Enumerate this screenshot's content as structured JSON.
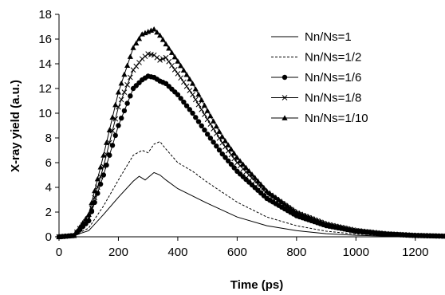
{
  "chart_data": {
    "type": "line",
    "title": "",
    "xlabel": "Time (ps)",
    "ylabel": "X-ray yield (a.u.)",
    "xlim": [
      0,
      1300
    ],
    "ylim": [
      0,
      18
    ],
    "xticks": [
      "0",
      "200",
      "400",
      "600",
      "800",
      "1000",
      "1200"
    ],
    "yticks": [
      "0",
      "2",
      "4",
      "6",
      "8",
      "10",
      "12",
      "14",
      "16",
      "18"
    ],
    "grid": false,
    "legend_position": "top-right",
    "series": [
      {
        "name": "Nn/Ns=1",
        "marker": "none",
        "dash": "solid",
        "color": "#000000",
        "x": [
          0,
          50,
          100,
          150,
          200,
          250,
          270,
          290,
          320,
          340,
          360,
          400,
          450,
          500,
          600,
          700,
          800,
          900,
          1000,
          1100,
          1200,
          1300
        ],
        "y": [
          0,
          0.1,
          0.5,
          1.8,
          3.2,
          4.5,
          4.9,
          4.6,
          5.2,
          5.0,
          4.6,
          3.9,
          3.3,
          2.7,
          1.6,
          0.9,
          0.5,
          0.25,
          0.12,
          0.06,
          0.03,
          0.01
        ]
      },
      {
        "name": "Nn/Ns=1/2",
        "marker": "none",
        "dash": "dashed",
        "color": "#000000",
        "x": [
          0,
          50,
          100,
          150,
          200,
          250,
          280,
          300,
          320,
          340,
          360,
          400,
          450,
          500,
          600,
          700,
          800,
          900,
          1000,
          1100,
          1200,
          1300
        ],
        "y": [
          0,
          0.1,
          0.7,
          2.5,
          4.6,
          6.6,
          7.0,
          6.8,
          7.5,
          7.7,
          7.1,
          6.0,
          5.3,
          4.4,
          2.8,
          1.6,
          0.9,
          0.45,
          0.22,
          0.1,
          0.05,
          0.02
        ]
      },
      {
        "name": "Nn/Ns=1/6",
        "marker": "circle",
        "dash": "solid",
        "color": "#000000",
        "x": [
          0,
          50,
          100,
          150,
          200,
          250,
          280,
          300,
          320,
          340,
          360,
          400,
          450,
          500,
          550,
          600,
          700,
          800,
          900,
          1000,
          1100,
          1200,
          1300
        ],
        "y": [
          0,
          0.1,
          1.3,
          5.0,
          9.0,
          12.0,
          12.7,
          13.0,
          12.9,
          12.6,
          12.4,
          11.5,
          10.0,
          8.3,
          6.7,
          5.3,
          3.1,
          1.7,
          0.9,
          0.45,
          0.22,
          0.1,
          0.05
        ]
      },
      {
        "name": "Nn/Ns=1/8",
        "marker": "x",
        "dash": "solid",
        "color": "#000000",
        "x": [
          0,
          50,
          100,
          150,
          200,
          250,
          280,
          300,
          320,
          340,
          360,
          400,
          450,
          500,
          550,
          600,
          700,
          800,
          900,
          1000,
          1100,
          1200,
          1300
        ],
        "y": [
          0,
          0.1,
          1.5,
          5.7,
          10.5,
          13.5,
          14.4,
          14.8,
          14.7,
          14.3,
          14.5,
          13.2,
          11.5,
          9.5,
          7.6,
          6.0,
          3.5,
          1.9,
          1.0,
          0.5,
          0.24,
          0.11,
          0.05
        ]
      },
      {
        "name": "Nn/Ns=1/10",
        "marker": "triangle",
        "dash": "solid",
        "color": "#000000",
        "x": [
          0,
          50,
          100,
          150,
          200,
          250,
          280,
          300,
          320,
          340,
          360,
          400,
          450,
          500,
          550,
          600,
          700,
          800,
          900,
          1000,
          1100,
          1200,
          1300
        ],
        "y": [
          0,
          0.1,
          1.8,
          6.6,
          11.7,
          15.3,
          16.4,
          16.6,
          16.8,
          16.3,
          15.6,
          14.2,
          12.4,
          10.2,
          8.1,
          6.4,
          3.7,
          2.0,
          1.05,
          0.52,
          0.25,
          0.12,
          0.05
        ]
      }
    ]
  }
}
